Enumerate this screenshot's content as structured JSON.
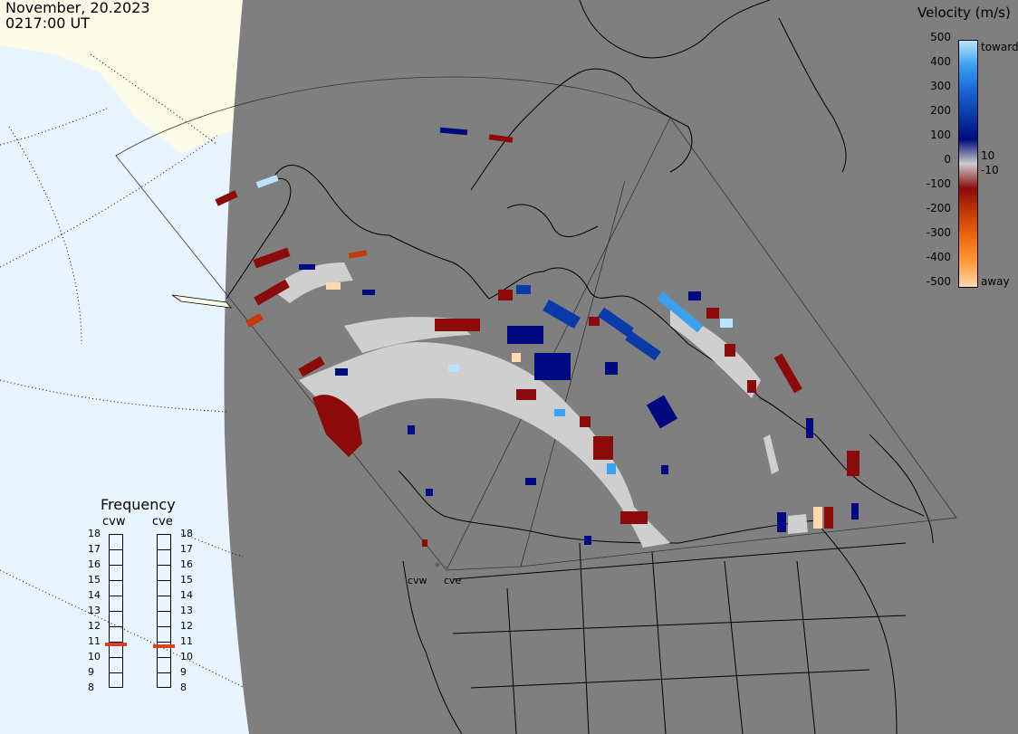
{
  "header": {
    "date": "November, 20.2023",
    "time": "0217:00 UT"
  },
  "colorbar": {
    "title": "Velocity (m/s)",
    "ticks": [
      "500",
      "400",
      "300",
      "200",
      "100",
      "0",
      "-100",
      "-200",
      "-300",
      "-400",
      "-500"
    ],
    "labels": {
      "toward": "toward",
      "away": "away",
      "plus10": "10",
      "minus10": "-10"
    },
    "colors": [
      "#ffd9b0",
      "#ff9a3a",
      "#f06a10",
      "#c43a08",
      "#8c0a0a",
      "#cccccc",
      "#000a80",
      "#0a3aa8",
      "#1a66d8",
      "#3aa0f0",
      "#b8e4ff"
    ]
  },
  "frequency": {
    "title": "Frequency",
    "radars": [
      "cvw",
      "cve"
    ],
    "scale": [
      "18",
      "17",
      "16",
      "15",
      "14",
      "13",
      "12",
      "11",
      "10",
      "9",
      "8"
    ],
    "values_mhz": [
      10.8,
      10.7
    ],
    "marker_color": "#e0401a"
  },
  "map": {
    "background_land": "#7f7f7f",
    "daylight_color": "#e8f4ff",
    "sea_ice_color": "#fcfcec",
    "radar_sites": [
      "cvw",
      "cve"
    ]
  }
}
